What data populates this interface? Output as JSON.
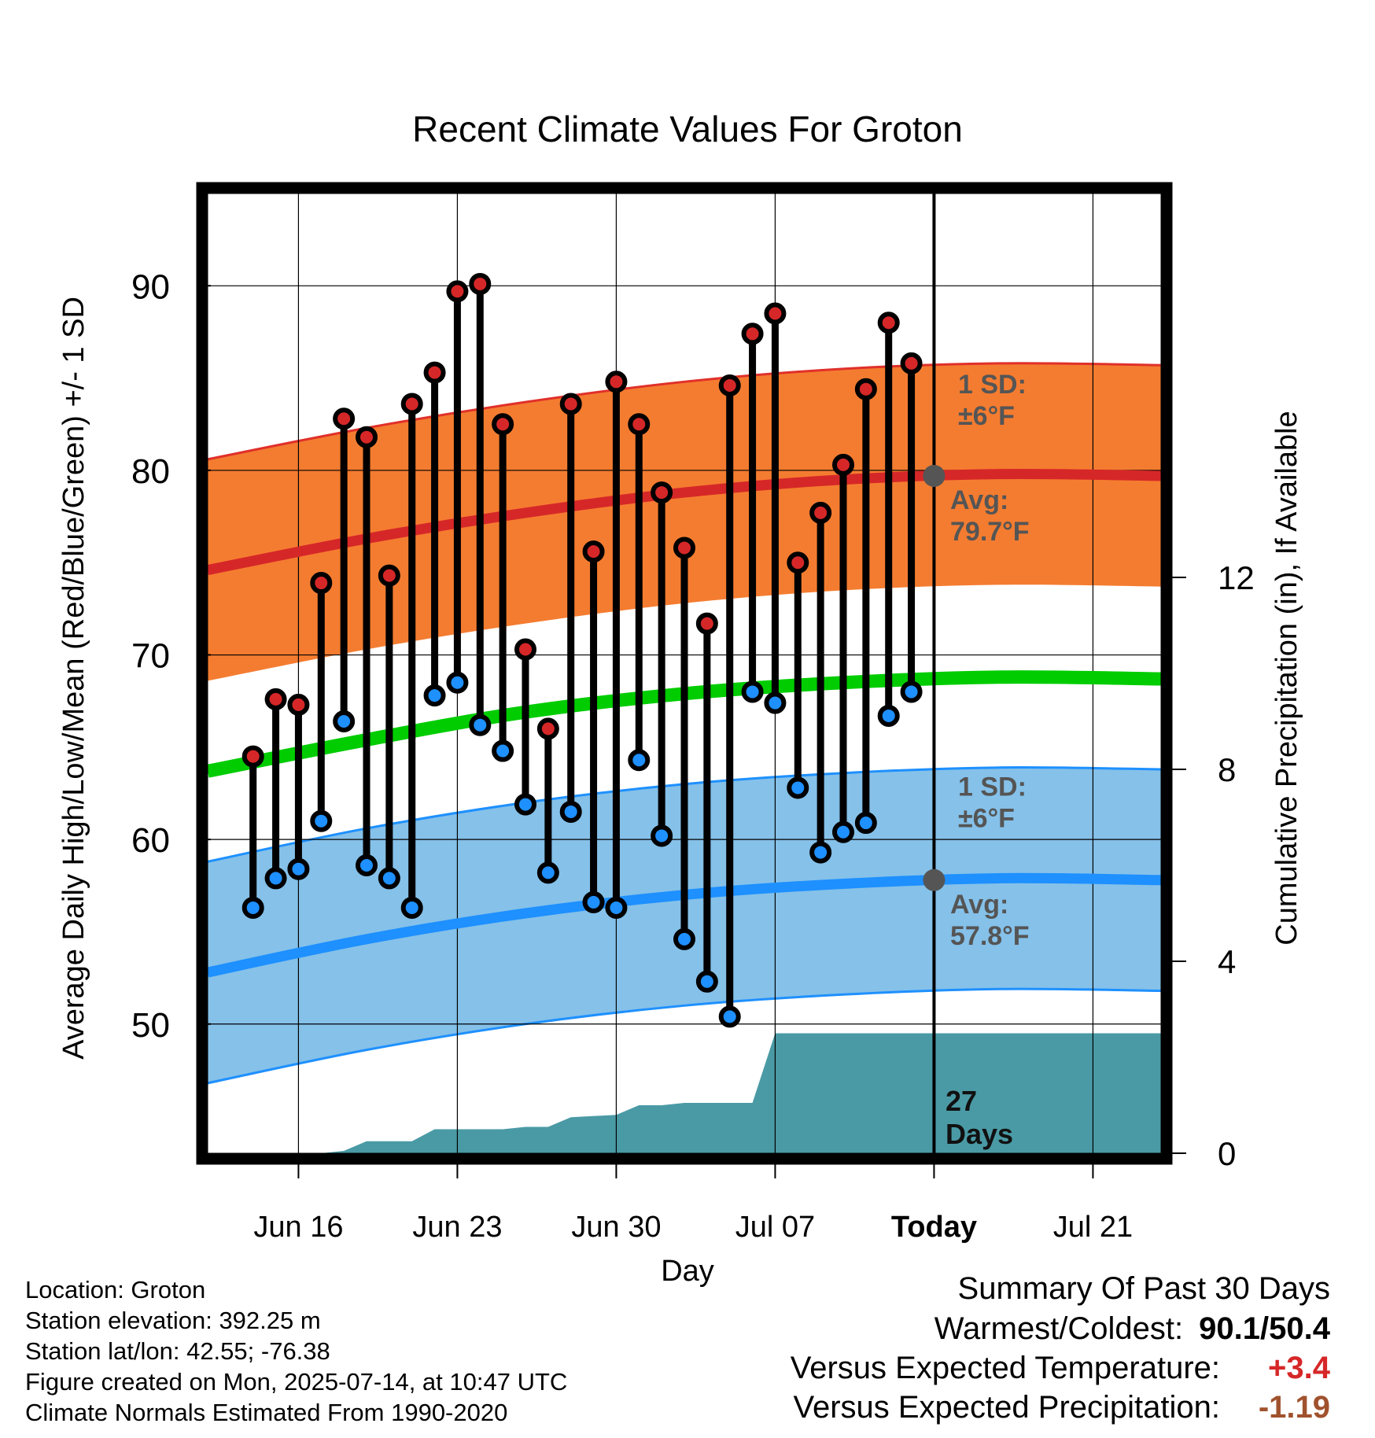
{
  "chart_data": {
    "type": "line",
    "title": "Recent Climate Values For Groton",
    "xlabel": "Day",
    "ylabel": "Average Daily High/Low/Mean (Red/Blue/Green) +/- 1 SD",
    "ylabel_right": "Cumulative Precipitation (in), If Available",
    "ylim": [
      43,
      95
    ],
    "ylim_right": [
      0,
      20
    ],
    "yticks": [
      "50",
      "60",
      "70",
      "80",
      "90"
    ],
    "yticks_right": [
      "0",
      "4",
      "8",
      "12"
    ],
    "x_range": [
      "Jun 12",
      "Jul 24"
    ],
    "xticks": [
      {
        "date": "Jun 16",
        "label": "Jun 16"
      },
      {
        "date": "Jun 23",
        "label": "Jun 23"
      },
      {
        "date": "Jun 30",
        "label": "Jun 30"
      },
      {
        "date": "Jul 07",
        "label": "Jul 07"
      },
      {
        "date": "Jul 14",
        "label": "Today"
      },
      {
        "date": "Jul 21",
        "label": "Jul 21"
      }
    ],
    "grid": true,
    "dates": [
      "Jun 14",
      "Jun 15",
      "Jun 16",
      "Jun 17",
      "Jun 18",
      "Jun 19",
      "Jun 20",
      "Jun 21",
      "Jun 22",
      "Jun 23",
      "Jun 24",
      "Jun 25",
      "Jun 26",
      "Jun 27",
      "Jun 28",
      "Jun 29",
      "Jun 30",
      "Jul 01",
      "Jul 02",
      "Jul 03",
      "Jul 04",
      "Jul 05",
      "Jul 06",
      "Jul 07",
      "Jul 08",
      "Jul 09",
      "Jul 10",
      "Jul 11",
      "Jul 12",
      "Jul 13"
    ],
    "series": [
      {
        "name": "High",
        "color": "#d62728",
        "values": [
          64.5,
          67.6,
          67.3,
          73.9,
          82.8,
          81.8,
          74.3,
          83.6,
          85.3,
          89.7,
          90.1,
          82.5,
          70.3,
          66.0,
          83.6,
          75.6,
          84.8,
          82.5,
          78.8,
          75.8,
          71.7,
          84.6,
          87.4,
          88.5,
          75.0,
          77.7,
          80.3,
          84.4,
          88.0,
          85.8
        ]
      },
      {
        "name": "Low",
        "color": "#1e90ff",
        "values": [
          56.3,
          57.9,
          58.4,
          61.0,
          66.4,
          58.6,
          57.9,
          56.3,
          67.8,
          68.5,
          66.2,
          64.8,
          61.9,
          58.2,
          61.5,
          56.6,
          56.3,
          64.3,
          60.2,
          54.6,
          52.3,
          50.4,
          68.0,
          67.4,
          62.8,
          59.3,
          60.4,
          60.9,
          66.7,
          68.0
        ]
      }
    ],
    "normals": {
      "dates": [
        "Jun 12",
        "Jun 19",
        "Jun 26",
        "Jul 03",
        "Jul 10",
        "Jul 17",
        "Jul 24"
      ],
      "high_avg": [
        74.6,
        76.3,
        77.7,
        78.8,
        79.5,
        79.8,
        79.7
      ],
      "low_avg": [
        52.8,
        54.6,
        56.0,
        57.0,
        57.6,
        57.9,
        57.8
      ],
      "mean_avg": [
        63.7,
        65.4,
        66.9,
        67.9,
        68.5,
        68.8,
        68.7
      ],
      "sd": 6,
      "high_color": "#f47c30",
      "low_color": "#85c1e9",
      "mean_color": "#00cc00"
    },
    "precip": {
      "color": "#4a9aa5",
      "points": [
        [
          "Jun 12",
          0
        ],
        [
          "Jun 17",
          0
        ],
        [
          "Jun 18",
          0.05
        ],
        [
          "Jun 19",
          0.25
        ],
        [
          "Jun 21",
          0.25
        ],
        [
          "Jun 22",
          0.5
        ],
        [
          "Jun 25",
          0.5
        ],
        [
          "Jun 26",
          0.55
        ],
        [
          "Jun 27",
          0.55
        ],
        [
          "Jun 28",
          0.75
        ],
        [
          "Jun 30",
          0.8
        ],
        [
          "Jul 01",
          1.0
        ],
        [
          "Jul 02",
          1.0
        ],
        [
          "Jul 03",
          1.05
        ],
        [
          "Jul 06",
          1.05
        ],
        [
          "Jul 07",
          2.5
        ],
        [
          "Jul 24",
          2.5
        ]
      ]
    },
    "annotations": {
      "high_sd_label": "1 SD:",
      "high_sd_value": "±6°F",
      "high_avg_label": "Avg:",
      "high_avg_value": "79.7°F",
      "low_sd_label": "1 SD:",
      "low_sd_value": "±6°F",
      "low_avg_label": "Avg:",
      "low_avg_value": "57.8°F",
      "days_count": "27",
      "days_label": "Days",
      "today_high_avg": 79.7,
      "today_low_avg": 57.8
    }
  },
  "info": {
    "location": "Location: Groton",
    "elevation": "Station elevation: 392.25 m",
    "latlon": "Station lat/lon: 42.55; -76.38",
    "created": "Figure created on Mon, 2025-07-14, at 10:47 UTC",
    "normals": "Climate Normals Estimated From 1990-2020"
  },
  "summary": {
    "title": "Summary Of Past 30 Days",
    "warm_cold_label": "Warmest/Coldest:",
    "warm_value": "90.1",
    "cold_value": "50.4",
    "temp_label": "Versus Expected Temperature:",
    "temp_value": "+3.4",
    "temp_color": "#d62728",
    "precip_label": "Versus Expected Precipitation:",
    "precip_value": "-1.19",
    "precip_color": "#a0522d"
  }
}
